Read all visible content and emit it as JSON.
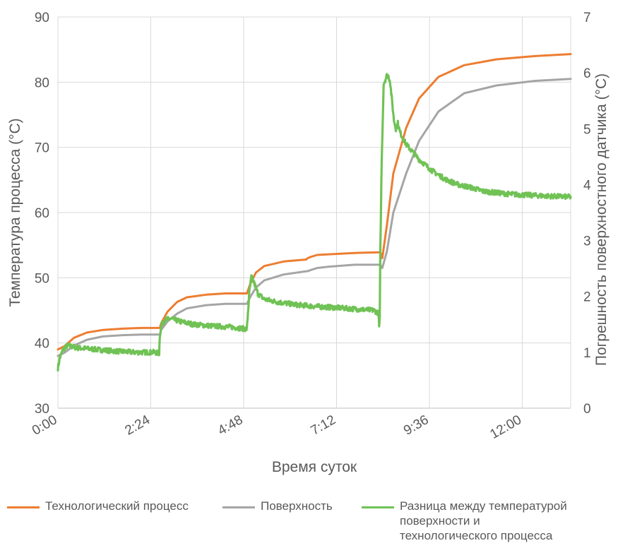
{
  "chart_data": {
    "type": "line",
    "title": "",
    "xlabel": "Время суток",
    "ylabel_left": "Температура процесса (°C)",
    "ylabel_right": "Погрешность поверхностного датчика (°C)",
    "x_ticks": [
      "0:00",
      "2:24",
      "4:48",
      "7:12",
      "9:36",
      "12:00"
    ],
    "x_tick_minutes": [
      0,
      144,
      288,
      432,
      576,
      720
    ],
    "xlim_minutes": [
      0,
      795
    ],
    "ylim_left": [
      30,
      90
    ],
    "y_ticks_left": [
      30,
      40,
      50,
      60,
      70,
      80,
      90
    ],
    "ylim_right": [
      0,
      7
    ],
    "y_ticks_right": [
      0,
      1,
      2,
      3,
      4,
      5,
      6,
      7
    ],
    "grid": true,
    "legend_position": "bottom",
    "series": [
      {
        "name": "Технологический процесс",
        "axis": "left",
        "color": "#ED7D31",
        "x_minutes": [
          0,
          10,
          25,
          45,
          70,
          100,
          130,
          158,
          160,
          170,
          185,
          200,
          230,
          260,
          293,
          298,
          307,
          320,
          350,
          385,
          387,
          392,
          402,
          420,
          460,
          500,
          503,
          510,
          520,
          540,
          560,
          590,
          630,
          680,
          740,
          795
        ],
        "values": [
          39,
          39.5,
          40.8,
          41.6,
          42.0,
          42.2,
          42.3,
          42.3,
          43.0,
          44.8,
          46.3,
          47.0,
          47.4,
          47.6,
          47.6,
          49.0,
          50.8,
          51.8,
          52.5,
          52.8,
          53.0,
          53.2,
          53.5,
          53.6,
          53.8,
          53.9,
          53.0,
          58.0,
          66.0,
          73.0,
          77.5,
          80.8,
          82.6,
          83.5,
          84.0,
          84.3
        ]
      },
      {
        "name": "Поверхность",
        "axis": "left",
        "color": "#A5A5A5",
        "x_minutes": [
          0,
          10,
          25,
          45,
          70,
          100,
          130,
          158,
          160,
          170,
          185,
          200,
          230,
          260,
          293,
          298,
          307,
          320,
          350,
          385,
          387,
          392,
          402,
          420,
          460,
          500,
          503,
          510,
          520,
          540,
          560,
          590,
          630,
          680,
          740,
          795
        ],
        "values": [
          38,
          38.5,
          39.6,
          40.5,
          41.0,
          41.2,
          41.3,
          41.3,
          42.0,
          43.3,
          44.5,
          45.3,
          45.8,
          46.0,
          46.0,
          47.0,
          48.5,
          49.6,
          50.5,
          51.0,
          51.0,
          51.2,
          51.5,
          51.7,
          52.0,
          52.0,
          51.5,
          54.0,
          60.0,
          66.0,
          71.0,
          75.5,
          78.3,
          79.5,
          80.2,
          80.5
        ]
      },
      {
        "name": "Разница между температурой поверхности и технологического процесса",
        "axis": "right",
        "color": "#70C255",
        "x_minutes": [
          0,
          3,
          8,
          15,
          30,
          60,
          90,
          120,
          150,
          157,
          158,
          161,
          166,
          175,
          190,
          210,
          240,
          270,
          290,
          293,
          294,
          297,
          300,
          304,
          310,
          320,
          340,
          370,
          400,
          430,
          490,
          497,
          498,
          499,
          500,
          502,
          505,
          510,
          512,
          515,
          518,
          521,
          524,
          527,
          530,
          534,
          540,
          560,
          580,
          600,
          620,
          640,
          660,
          700,
          750,
          795
        ],
        "values": [
          0.72,
          0.9,
          1.05,
          1.12,
          1.08,
          1.05,
          1.02,
          1.0,
          1.0,
          0.98,
          1.3,
          1.5,
          1.58,
          1.6,
          1.55,
          1.5,
          1.47,
          1.45,
          1.42,
          1.42,
          1.6,
          2.1,
          2.35,
          2.25,
          2.05,
          1.95,
          1.9,
          1.85,
          1.82,
          1.8,
          1.75,
          1.7,
          1.45,
          1.6,
          2.9,
          4.4,
          5.8,
          5.95,
          5.95,
          5.85,
          5.5,
          5.15,
          5.0,
          5.1,
          4.95,
          4.85,
          4.72,
          4.45,
          4.25,
          4.1,
          4.0,
          3.95,
          3.88,
          3.83,
          3.8,
          3.78
        ]
      }
    ]
  },
  "legend": [
    {
      "label_lines": [
        "Технологический процесс"
      ],
      "color": "#ED7D31"
    },
    {
      "label_lines": [
        "Поверхность"
      ],
      "color": "#A5A5A5"
    },
    {
      "label_lines": [
        "Разница между температурой",
        "поверхности и",
        "технологического процесса"
      ],
      "color": "#70C255"
    }
  ]
}
